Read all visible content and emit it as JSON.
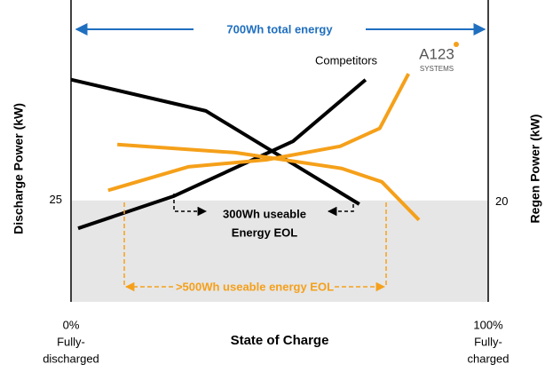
{
  "chart_data": {
    "type": "line",
    "xlabel": "State of Charge",
    "ylabel": "Discharge Power (kW)",
    "y2label": "Regen Power (kW)",
    "xlim": [
      0,
      100
    ],
    "xticks": [
      {
        "value": 0,
        "label": "0%"
      },
      {
        "value": 100,
        "label": "100%"
      }
    ],
    "xtick_notes": [
      [
        "Fully-",
        "discharged"
      ],
      [
        "Fully-",
        "charged"
      ]
    ],
    "ylim": [
      0,
      74
    ],
    "yticks": [
      25
    ],
    "y2lim": [
      0,
      60
    ],
    "y2ticks": [
      20
    ],
    "series": [
      {
        "color": "#000000",
        "axis": "y",
        "x": [
          0,
          32.3,
          69.1
        ],
        "values": [
          54.8,
          47.1,
          24.1
        ]
      },
      {
        "color": "#000000",
        "axis": "y2",
        "x": [
          1.7,
          24.5,
          53.2,
          70.6
        ],
        "values": [
          14.7,
          21.1,
          32.1,
          44.4
        ]
      },
      {
        "color": "#f5a01a",
        "axis": "y",
        "x": [
          11.1,
          39.4,
          64.9,
          74.5,
          83.4
        ],
        "values": [
          38.8,
          36.8,
          32.9,
          29.6,
          20.2
        ]
      },
      {
        "color": "#f5a01a",
        "axis": "y2",
        "x": [
          8.9,
          28.1,
          46.8,
          64.5,
          74.0,
          80.9
        ],
        "values": [
          22.3,
          27.0,
          28.4,
          31.1,
          34.7,
          45.6
        ]
      }
    ],
    "annotations": {
      "total": "700Wh total energy",
      "competitors": "Competitors",
      "useable_lines": [
        "300Wh useable",
        "Energy EOL"
      ],
      "useable_a123": ">500Wh useable energy EOL",
      "logo": [
        "A123",
        "SYSTEMS"
      ]
    }
  }
}
